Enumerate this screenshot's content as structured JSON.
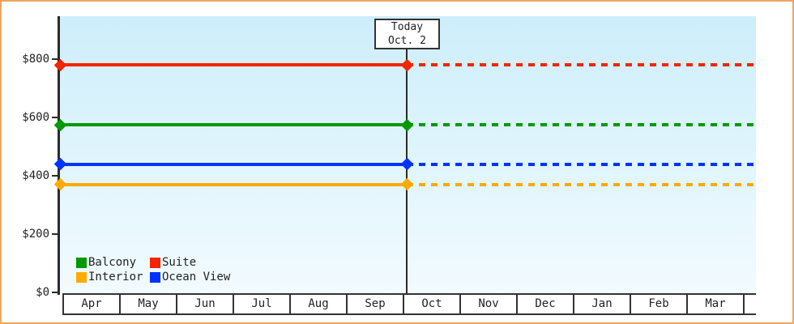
{
  "colors": {
    "frame": "#eda55e",
    "axis": "#2b2b2b",
    "text": "#222222",
    "plot_top": "#cdeefb",
    "plot_bottom": "#f2fbfe",
    "box_border": "#333333"
  },
  "chart_data": {
    "type": "line",
    "title": "",
    "xlabel": "",
    "ylabel": "",
    "x_categories": [
      "Apr",
      "May",
      "Jun",
      "Jul",
      "Aug",
      "Sep",
      "Oct",
      "Nov",
      "Dec",
      "Jan",
      "Feb",
      "Mar"
    ],
    "y_ticks": [
      {
        "label": "$0",
        "value": 0
      },
      {
        "label": "$200",
        "value": 200
      },
      {
        "label": "$400",
        "value": 400
      },
      {
        "label": "$600",
        "value": 600
      },
      {
        "label": "$800",
        "value": 800
      }
    ],
    "ylim": [
      0,
      950
    ],
    "grid": false,
    "legend_position": "inside-bottom-left",
    "series": [
      {
        "name": "Balcony",
        "color": "#009a00",
        "value": 575
      },
      {
        "name": "Suite",
        "color": "#f32500",
        "value": 780
      },
      {
        "name": "Interior",
        "color": "#ffaa00",
        "value": 370
      },
      {
        "name": "Ocean View",
        "color": "#0033ff",
        "value": 440
      }
    ],
    "today": {
      "line1": "Today",
      "line2": "Oct. 2"
    },
    "style_note": "flat price lines: solid with diamond markers before today, dotted after today"
  }
}
